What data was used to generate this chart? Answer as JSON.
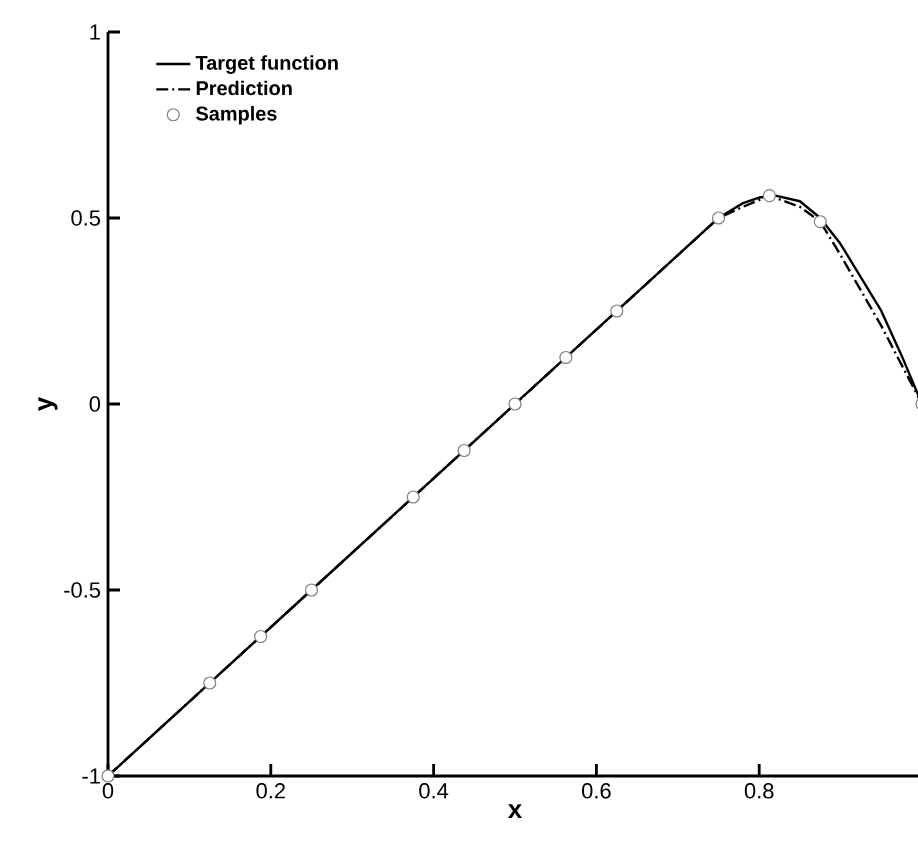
{
  "chart_data": {
    "type": "line",
    "xlabel": "x",
    "ylabel": "y",
    "xlim": [
      0,
      1
    ],
    "ylim": [
      -1,
      1
    ],
    "xticks": [
      0,
      0.2,
      0.4,
      0.6,
      0.8
    ],
    "yticks": [
      -1,
      -0.5,
      0,
      0.5,
      1
    ],
    "grid": false,
    "legend": "top left",
    "series": [
      {
        "name": "Target function",
        "color": "#000000",
        "line_style": "solid",
        "marker": "none",
        "x": [
          0,
          0.25,
          0.5,
          0.75,
          0.78,
          0.8,
          0.82,
          0.85,
          0.875,
          0.9,
          0.95,
          0.975,
          1.0
        ],
        "values": [
          -1,
          -0.5,
          0,
          0.5,
          0.54,
          0.555,
          0.56,
          0.545,
          0.5,
          0.43,
          0.25,
          0.13,
          0.0
        ]
      },
      {
        "name": "Prediction",
        "color": "#000000",
        "line_style": "dashdot",
        "marker": "none",
        "x": [
          0,
          0.25,
          0.5,
          0.75,
          0.78,
          0.8125,
          0.85,
          0.875,
          0.9,
          0.95,
          1.0
        ],
        "values": [
          -1,
          -0.5,
          0,
          0.5,
          0.53,
          0.56,
          0.53,
          0.49,
          0.4,
          0.21,
          0.0
        ]
      },
      {
        "name": "Samples",
        "type": "scatter",
        "color": "#7f7f7f",
        "marker": "circle",
        "x": [
          0,
          0.125,
          0.1875,
          0.25,
          0.375,
          0.4375,
          0.5,
          0.5625,
          0.625,
          0.75,
          0.8125,
          0.875,
          1.0
        ],
        "values": [
          -1,
          -0.75,
          -0.625,
          -0.5,
          -0.25,
          -0.125,
          0,
          0.125,
          0.25,
          0.5,
          0.56,
          0.49,
          0.0
        ]
      }
    ]
  }
}
